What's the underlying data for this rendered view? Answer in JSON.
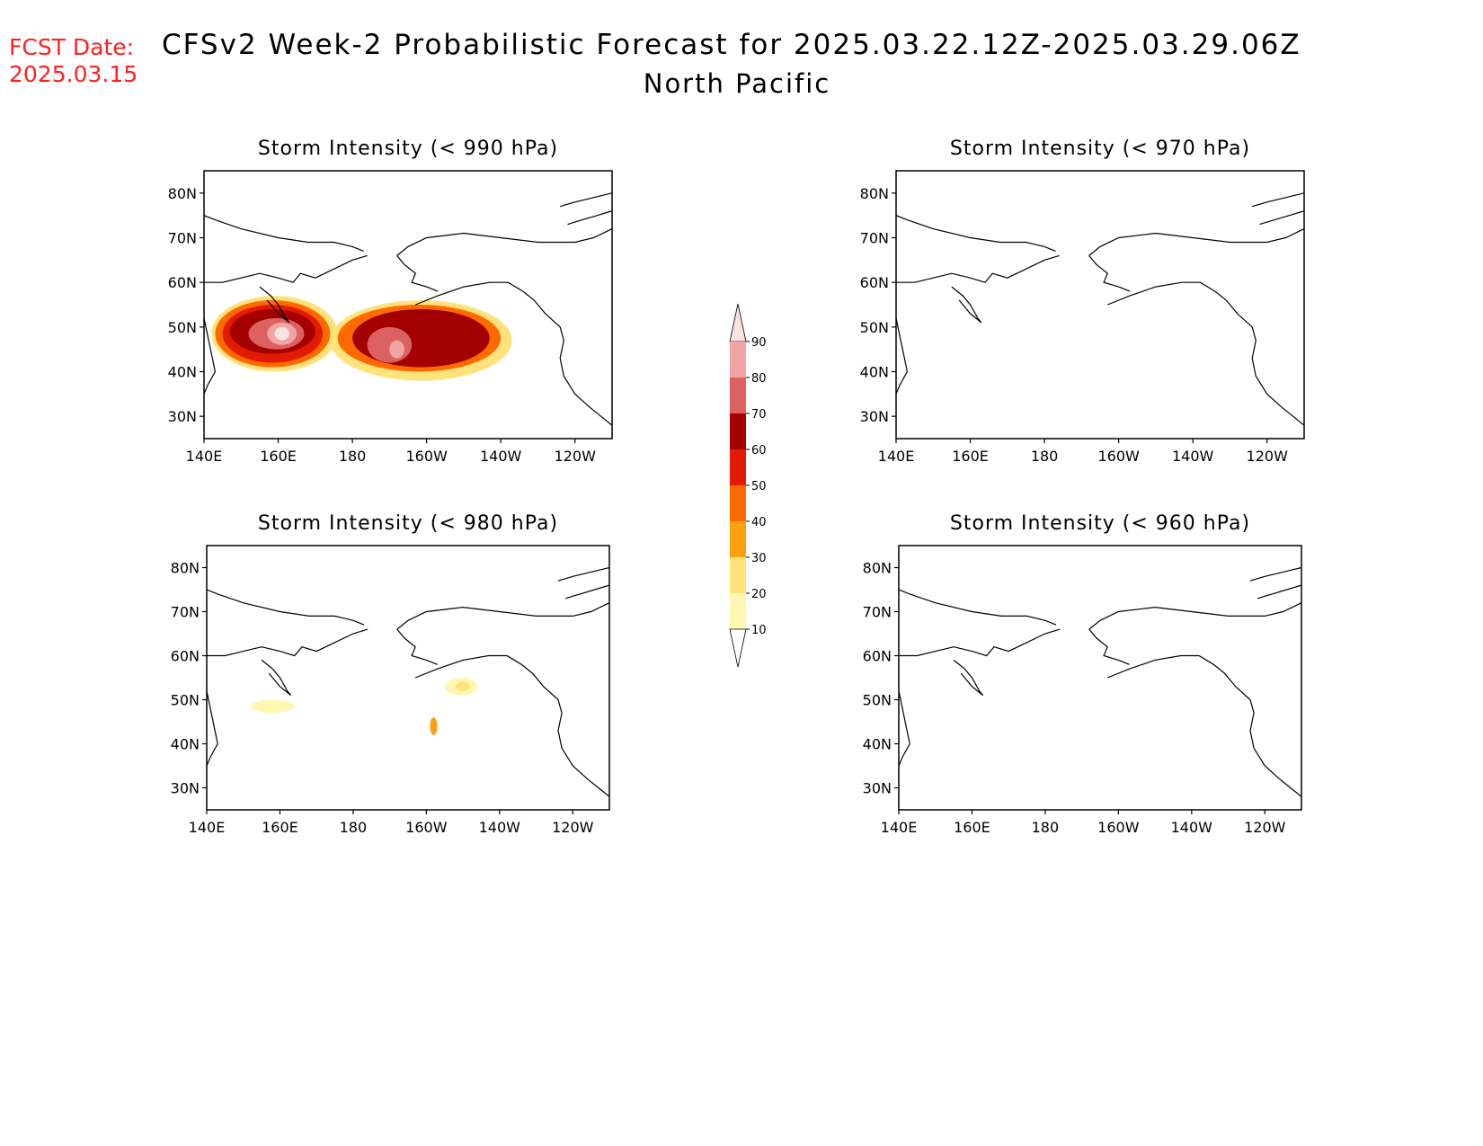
{
  "header": {
    "fcst_label": "FCST Date:",
    "fcst_date": "2025.03.15",
    "title": "CFSv2 Week-2 Probabilistic Forecast for 2025.03.22.12Z-2025.03.29.06Z",
    "subtitle": "North Pacific"
  },
  "axes": {
    "lat_ticks": [
      "80N",
      "70N",
      "60N",
      "50N",
      "40N",
      "30N"
    ],
    "lon_ticks": [
      "140E",
      "160E",
      "180",
      "160W",
      "140W",
      "120W"
    ]
  },
  "panels": [
    {
      "id": "p990",
      "title": "Storm Intensity (< 990 hPa)"
    },
    {
      "id": "p970",
      "title": "Storm Intensity (< 970 hPa)"
    },
    {
      "id": "p980",
      "title": "Storm Intensity (< 980 hPa)"
    },
    {
      "id": "p960",
      "title": "Storm Intensity (< 960 hPa)"
    }
  ],
  "colorbar": {
    "levels": [
      10,
      20,
      30,
      40,
      50,
      60,
      70,
      80,
      90
    ],
    "colors": [
      "#fff7b0",
      "#ffe27a",
      "#ffa010",
      "#ff6a00",
      "#e21b00",
      "#a40000",
      "#dc6262",
      "#f2a4a4",
      "#fbe2e2",
      "#ffffff"
    ]
  },
  "chart_data": {
    "type": "heatmap",
    "lat_range": [
      25,
      85
    ],
    "lon_range": [
      140,
      250
    ],
    "panels": [
      {
        "title": "Storm Intensity (< 990 hPa)",
        "regions": [
          {
            "lon": [
              142,
              176
            ],
            "lat": [
              40,
              57
            ],
            "level": 20
          },
          {
            "lon": [
              143,
              174
            ],
            "lat": [
              41,
              56
            ],
            "level": 40
          },
          {
            "lon": [
              145,
              172
            ],
            "lat": [
              42,
              55
            ],
            "level": 50
          },
          {
            "lon": [
              147,
              170
            ],
            "lat": [
              44,
              54
            ],
            "level": 60
          },
          {
            "lon": [
              152,
              167
            ],
            "lat": [
              45,
              52
            ],
            "level": 70
          },
          {
            "lon": [
              157,
              165
            ],
            "lat": [
              46,
              51
            ],
            "level": 80
          },
          {
            "lon": [
              159,
              163
            ],
            "lat": [
              47,
              50
            ],
            "level": 90
          },
          {
            "lon": [
              174,
              223
            ],
            "lat": [
              38,
              56
            ],
            "level": 20
          },
          {
            "lon": [
              176,
              220
            ],
            "lat": [
              40,
              55
            ],
            "level": 40
          },
          {
            "lon": [
              180,
              217
            ],
            "lat": [
              41,
              54
            ],
            "level": 60
          },
          {
            "lon": [
              184,
              196
            ],
            "lat": [
              42,
              50
            ],
            "level": 70
          },
          {
            "lon": [
              190,
              194
            ],
            "lat": [
              43,
              47
            ],
            "level": 80
          }
        ]
      },
      {
        "title": "Storm Intensity (< 970 hPa)",
        "regions": []
      },
      {
        "title": "Storm Intensity (< 980 hPa)",
        "regions": [
          {
            "lon": [
              152,
              164
            ],
            "lat": [
              47,
              50
            ],
            "level": 10
          },
          {
            "lon": [
              205,
              214
            ],
            "lat": [
              51,
              55
            ],
            "level": 10
          },
          {
            "lon": [
              208,
              212
            ],
            "lat": [
              52,
              54
            ],
            "level": 20
          },
          {
            "lon": [
              201,
              203
            ],
            "lat": [
              42,
              46
            ],
            "level": 30
          }
        ]
      },
      {
        "title": "Storm Intensity (< 960 hPa)",
        "regions": []
      }
    ]
  }
}
